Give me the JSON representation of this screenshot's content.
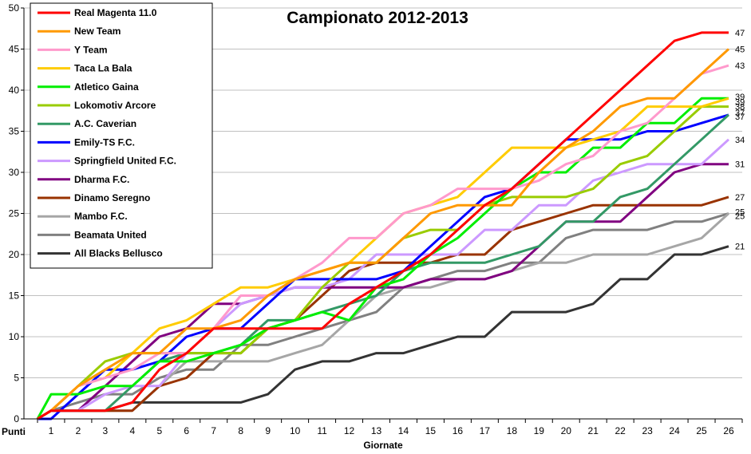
{
  "chart_data": {
    "type": "line",
    "title": "Campionato 2012-2013",
    "xlabel": "Giornate",
    "ylabel": "Punti",
    "x": [
      1,
      2,
      3,
      4,
      5,
      6,
      7,
      8,
      9,
      10,
      11,
      12,
      13,
      14,
      15,
      16,
      17,
      18,
      19,
      20,
      21,
      22,
      23,
      24,
      25,
      26
    ],
    "ylim": [
      0,
      50
    ],
    "yticks": [
      0,
      5,
      10,
      15,
      20,
      25,
      30,
      35,
      40,
      45,
      50
    ],
    "grid": true,
    "legend_position": "top-left",
    "series": [
      {
        "name": "Real Magenta  11.0",
        "color": "#ff0000",
        "values": [
          1,
          1,
          1,
          2,
          6,
          8,
          11,
          11,
          11,
          11,
          11,
          14,
          16,
          18,
          20,
          23,
          26,
          28,
          31,
          34,
          37,
          40,
          43,
          46,
          47,
          47
        ]
      },
      {
        "name": "New Team",
        "color": "#ff9900",
        "values": [
          1,
          4,
          6,
          8,
          8,
          11,
          11,
          12,
          15,
          17,
          18,
          19,
          19,
          22,
          25,
          26,
          26,
          26,
          30,
          33,
          35,
          38,
          39,
          39,
          42,
          45
        ]
      },
      {
        "name": "Y Team",
        "color": "#ff99cc",
        "values": [
          1,
          4,
          5,
          6,
          8,
          8,
          11,
          15,
          15,
          17,
          19,
          22,
          22,
          25,
          26,
          28,
          28,
          28,
          29,
          31,
          32,
          35,
          36,
          39,
          42,
          43
        ]
      },
      {
        "name": "Taca La Bala",
        "color": "#ffcc00",
        "values": [
          1,
          4,
          5,
          8,
          11,
          12,
          14,
          16,
          16,
          17,
          18,
          19,
          22,
          25,
          26,
          27,
          30,
          33,
          33,
          33,
          34,
          35,
          38,
          38,
          38,
          39
        ]
      },
      {
        "name": "Atletico Gaina",
        "color": "#00ee00",
        "values": [
          3,
          3,
          4,
          4,
          7,
          7,
          8,
          9,
          11,
          12,
          13,
          12,
          16,
          17,
          20,
          22,
          25,
          28,
          30,
          30,
          33,
          33,
          36,
          36,
          39,
          39
        ]
      },
      {
        "name": "Lokomotiv Arcore",
        "color": "#99cc00",
        "values": [
          1,
          4,
          7,
          8,
          8,
          8,
          8,
          8,
          11,
          12,
          16,
          19,
          19,
          22,
          23,
          23,
          26,
          27,
          27,
          27,
          28,
          31,
          32,
          35,
          38,
          38
        ]
      },
      {
        "name": "A.C. Caverian",
        "color": "#339966",
        "values": [
          1,
          1,
          1,
          4,
          7,
          8,
          8,
          9,
          12,
          12,
          13,
          14,
          15,
          18,
          19,
          19,
          19,
          20,
          21,
          24,
          24,
          27,
          28,
          31,
          34,
          37
        ]
      },
      {
        "name": "Emily-TS F.C.",
        "color": "#0000ff",
        "values": [
          0,
          3,
          6,
          6,
          7,
          10,
          11,
          11,
          14,
          17,
          17,
          17,
          17,
          18,
          21,
          24,
          27,
          28,
          31,
          34,
          34,
          34,
          35,
          35,
          36,
          37
        ]
      },
      {
        "name": "Springfield United F.C.",
        "color": "#cc99ff",
        "values": [
          1,
          1,
          3,
          4,
          4,
          8,
          11,
          14,
          15,
          16,
          16,
          17,
          20,
          20,
          20,
          20,
          23,
          23,
          26,
          26,
          29,
          30,
          31,
          31,
          31,
          34
        ]
      },
      {
        "name": "Dharma F.C.",
        "color": "#800080",
        "values": [
          1,
          1,
          4,
          7,
          10,
          11,
          14,
          14,
          15,
          16,
          16,
          16,
          16,
          16,
          17,
          17,
          17,
          18,
          21,
          24,
          24,
          24,
          27,
          30,
          31,
          31
        ]
      },
      {
        "name": "Dinamo Seregno",
        "color": "#993300",
        "values": [
          1,
          1,
          1,
          1,
          4,
          5,
          8,
          8,
          11,
          12,
          15,
          18,
          19,
          19,
          19,
          20,
          20,
          23,
          24,
          25,
          26,
          26,
          26,
          26,
          26,
          27
        ]
      },
      {
        "name": "Mambo F.C.",
        "color": "#a6a6a6",
        "values": [
          1,
          1,
          1,
          1,
          4,
          7,
          7,
          7,
          7,
          8,
          9,
          12,
          15,
          16,
          16,
          17,
          17,
          18,
          19,
          19,
          20,
          20,
          20,
          21,
          22,
          25
        ]
      },
      {
        "name": "Beamata United",
        "color": "#808080",
        "values": [
          1,
          2,
          3,
          3,
          5,
          6,
          6,
          9,
          9,
          10,
          11,
          12,
          13,
          16,
          17,
          18,
          18,
          19,
          19,
          22,
          23,
          23,
          23,
          24,
          24,
          25
        ]
      },
      {
        "name": "All Blacks Bellusco",
        "color": "#333333",
        "values": [
          1,
          1,
          1,
          2,
          2,
          2,
          2,
          2,
          3,
          6,
          7,
          7,
          8,
          8,
          9,
          10,
          10,
          13,
          13,
          13,
          14,
          17,
          17,
          20,
          20,
          21
        ]
      }
    ],
    "end_labels": [
      "47",
      "45",
      "43",
      "39",
      "39",
      "38",
      "37",
      "37",
      "34",
      "31",
      "27",
      "25",
      "25",
      "21"
    ]
  }
}
